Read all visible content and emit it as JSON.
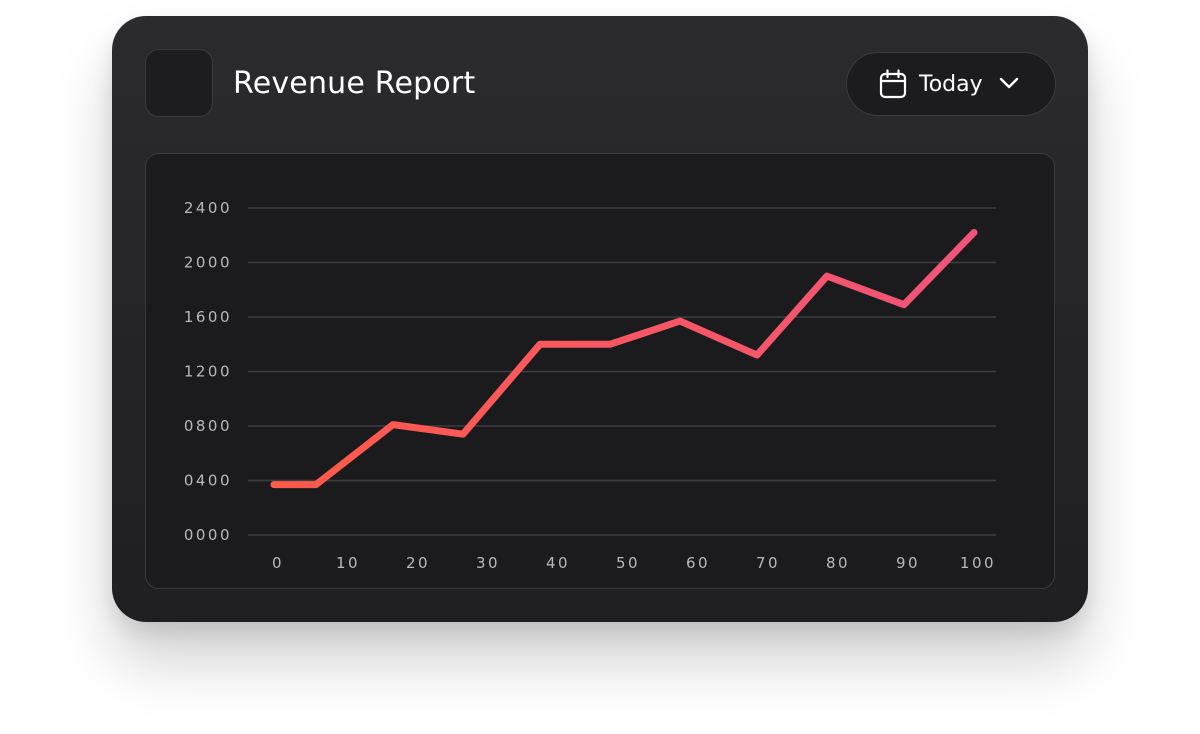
{
  "header": {
    "title": "Revenue Report",
    "icon": "bar-chart-icon"
  },
  "date_filter": {
    "label": "Today",
    "icon": "calendar-icon",
    "dropdown_icon": "chevron-down-icon"
  },
  "colors": {
    "line_start": "#ff5a4a",
    "line_end": "#f0547a",
    "grid": "#3e3e42",
    "tick_text": "#b9b9bd"
  },
  "chart_data": {
    "type": "line",
    "title": "",
    "xlabel": "",
    "ylabel": "",
    "x_ticks": [
      "0",
      "10",
      "20",
      "30",
      "40",
      "50",
      "60",
      "70",
      "80",
      "90",
      "100"
    ],
    "y_ticks": [
      "0000",
      "0400",
      "0800",
      "1200",
      "1600",
      "2000",
      "2400"
    ],
    "xlim": [
      0,
      100
    ],
    "ylim": [
      0,
      2400
    ],
    "grid": true,
    "legend": "none",
    "series": [
      {
        "x": [
          0,
          6,
          17,
          27,
          38,
          48,
          58,
          69,
          79,
          90,
          100
        ],
        "y": [
          370,
          370,
          810,
          740,
          1400,
          1400,
          1570,
          1320,
          1900,
          1690,
          2220
        ]
      }
    ]
  }
}
